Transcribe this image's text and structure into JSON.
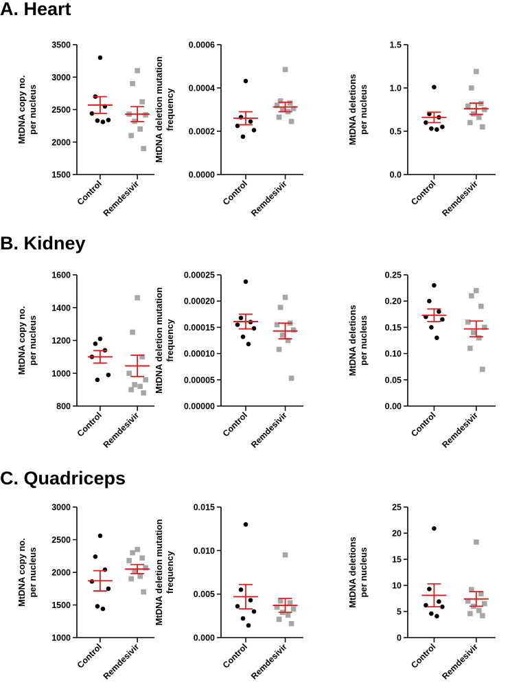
{
  "sections": [
    {
      "title": "A. Heart"
    },
    {
      "title": "B. Kidney"
    },
    {
      "title": "C. Quadriceps"
    }
  ],
  "colors": {
    "control": "#000000",
    "remdesivir": "#a6a6a6",
    "error": "#e31a1c",
    "axis": "#000000"
  },
  "chart_data": [
    {
      "type": "scatter",
      "section": "A. Heart",
      "ylabel": [
        "MtDNA copy no.",
        "per nucleus"
      ],
      "ylim": [
        1500,
        3500
      ],
      "yticks": [
        "1500",
        "2000",
        "2500",
        "3000",
        "3500"
      ],
      "categories": [
        "Control",
        "Remdesivir"
      ],
      "series": [
        {
          "name": "Control",
          "marker": "circle",
          "values": [
            3300,
            2700,
            2550,
            2440,
            2340,
            2330,
            2310
          ],
          "mean": 2570,
          "sem": 130
        },
        {
          "name": "Remdesivir",
          "marker": "square",
          "values": [
            3100,
            2900,
            2620,
            2430,
            2420,
            2320,
            2200,
            2100,
            1900
          ],
          "mean": 2430,
          "sem": 115
        }
      ]
    },
    {
      "type": "scatter",
      "section": "A. Heart",
      "ylabel": [
        "MtDNA deletion mutation",
        "frequency"
      ],
      "ylim": [
        0,
        0.0006
      ],
      "yticks": [
        "0.0000",
        "0.0002",
        "0.0004",
        "0.0006"
      ],
      "categories": [
        "Control",
        "Remdesivir"
      ],
      "series": [
        {
          "name": "Control",
          "marker": "circle",
          "values": [
            0.000432,
            0.000265,
            0.000245,
            0.000225,
            0.000205,
            0.000175
          ],
          "mean": 0.00026,
          "sem": 3e-05
        },
        {
          "name": "Remdesivir",
          "marker": "square",
          "values": [
            0.000485,
            0.00034,
            0.00033,
            0.00032,
            0.000305,
            0.0003,
            0.00029,
            0.000265,
            0.000245
          ],
          "mean": 0.000312,
          "sem": 2.2e-05
        }
      ]
    },
    {
      "type": "scatter",
      "section": "A. Heart",
      "ylabel": [
        "MtDNA deletions",
        "per nucleus"
      ],
      "ylim": [
        0,
        1.5
      ],
      "yticks": [
        "0.0",
        "0.5",
        "1.0",
        "1.5"
      ],
      "categories": [
        "Control",
        "Remdesivir"
      ],
      "series": [
        {
          "name": "Control",
          "marker": "circle",
          "values": [
            1.01,
            0.7,
            0.66,
            0.6,
            0.55,
            0.53,
            0.52
          ],
          "mean": 0.66,
          "sem": 0.06
        },
        {
          "name": "Remdesivir",
          "marker": "square",
          "values": [
            1.19,
            1.0,
            0.82,
            0.79,
            0.75,
            0.7,
            0.66,
            0.6,
            0.55
          ],
          "mean": 0.76,
          "sem": 0.065
        }
      ]
    },
    {
      "type": "scatter",
      "section": "B. Kidney",
      "ylabel": [
        "MtDNA copy no.",
        "per nucleus"
      ],
      "ylim": [
        800,
        1600
      ],
      "yticks": [
        "800",
        "1000",
        "1200",
        "1400",
        "1600"
      ],
      "categories": [
        "Control",
        "Remdesivir"
      ],
      "series": [
        {
          "name": "Control",
          "marker": "circle",
          "values": [
            1210,
            1180,
            1140,
            1100,
            990,
            960
          ],
          "mean": 1100,
          "sem": 38
        },
        {
          "name": "Remdesivir",
          "marker": "square",
          "values": [
            1460,
            1250,
            1100,
            1000,
            960,
            930,
            920,
            900,
            880
          ],
          "mean": 1045,
          "sem": 65
        }
      ]
    },
    {
      "type": "scatter",
      "section": "B. Kidney",
      "ylabel": [
        "MtDNA deletion mutation",
        "frequency"
      ],
      "ylim": [
        0,
        0.00025
      ],
      "yticks": [
        "0.00000",
        "0.00005",
        "0.00010",
        "0.00015",
        "0.00020",
        "0.00025"
      ],
      "categories": [
        "Control",
        "Remdesivir"
      ],
      "series": [
        {
          "name": "Control",
          "marker": "circle",
          "values": [
            0.000237,
            0.000168,
            0.00016,
            0.000155,
            0.000148,
            0.000132,
            0.000118
          ],
          "mean": 0.000161,
          "sem": 1.4e-05
        },
        {
          "name": "Remdesivir",
          "marker": "square",
          "values": [
            0.000207,
            0.000188,
            0.000158,
            0.000155,
            0.000145,
            0.000135,
            0.000125,
            0.000108,
            5.3e-05
          ],
          "mean": 0.000143,
          "sem": 1.5e-05
        }
      ]
    },
    {
      "type": "scatter",
      "section": "B. Kidney",
      "ylabel": [
        "MtDNA deletions",
        "per nucleus"
      ],
      "ylim": [
        0,
        0.25
      ],
      "yticks": [
        "0.00",
        "0.05",
        "0.10",
        "0.15",
        "0.20",
        "0.25"
      ],
      "categories": [
        "Control",
        "Remdesivir"
      ],
      "series": [
        {
          "name": "Control",
          "marker": "circle",
          "values": [
            0.23,
            0.2,
            0.18,
            0.17,
            0.165,
            0.15,
            0.13
          ],
          "mean": 0.173,
          "sem": 0.012
        },
        {
          "name": "Remdesivir",
          "marker": "square",
          "values": [
            0.22,
            0.21,
            0.19,
            0.16,
            0.15,
            0.14,
            0.13,
            0.11,
            0.07
          ],
          "mean": 0.147,
          "sem": 0.015
        }
      ]
    },
    {
      "type": "scatter",
      "section": "C. Quadriceps",
      "ylabel": [
        "MtDNA copy no.",
        "per nucleus"
      ],
      "ylim": [
        1000,
        3000
      ],
      "yticks": [
        "1000",
        "1500",
        "2000",
        "2500",
        "3000"
      ],
      "categories": [
        "Control",
        "Remdesivir"
      ],
      "series": [
        {
          "name": "Control",
          "marker": "circle",
          "values": [
            2560,
            2240,
            2040,
            1860,
            1750,
            1480,
            1440
          ],
          "mean": 1870,
          "sem": 155
        },
        {
          "name": "Remdesivir",
          "marker": "square",
          "values": [
            2350,
            2300,
            2220,
            2180,
            2070,
            2020,
            1940,
            1900,
            1700
          ],
          "mean": 2050,
          "sem": 70
        }
      ]
    },
    {
      "type": "scatter",
      "section": "C. Quadriceps",
      "ylabel": [
        "MtDNA deletion mutation",
        "frequency"
      ],
      "ylim": [
        0,
        0.015
      ],
      "yticks": [
        "0.000",
        "0.005",
        "0.010",
        "0.015"
      ],
      "categories": [
        "Control",
        "Remdesivir"
      ],
      "series": [
        {
          "name": "Control",
          "marker": "circle",
          "values": [
            0.013,
            0.0055,
            0.0043,
            0.0036,
            0.003,
            0.0022,
            0.0014
          ],
          "mean": 0.0047,
          "sem": 0.0014
        },
        {
          "name": "Remdesivir",
          "marker": "square",
          "values": [
            0.0095,
            0.0042,
            0.004,
            0.0035,
            0.0033,
            0.0029,
            0.0026,
            0.0021,
            0.0016
          ],
          "mean": 0.0037,
          "sem": 0.0008
        }
      ]
    },
    {
      "type": "scatter",
      "section": "C. Quadriceps",
      "ylabel": [
        "MtDNA deletions",
        "per nucleus"
      ],
      "ylim": [
        0,
        25
      ],
      "yticks": [
        "0",
        "5",
        "10",
        "15",
        "20",
        "25"
      ],
      "categories": [
        "Control",
        "Remdesivir"
      ],
      "series": [
        {
          "name": "Control",
          "marker": "circle",
          "values": [
            20.9,
            9.3,
            6.9,
            6.2,
            5.9,
            4.6,
            4.1
          ],
          "mean": 8.1,
          "sem": 2.2
        },
        {
          "name": "Remdesivir",
          "marker": "square",
          "values": [
            18.3,
            9.2,
            8.4,
            7.0,
            6.5,
            6.0,
            5.2,
            4.6,
            4.2
          ],
          "mean": 7.4,
          "sem": 1.4
        }
      ]
    }
  ]
}
